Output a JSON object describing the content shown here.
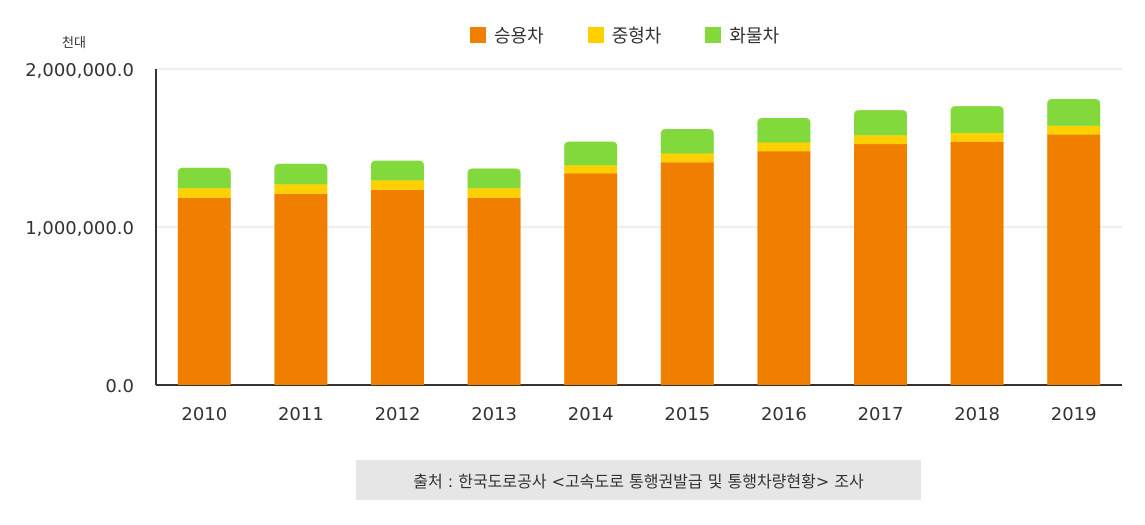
{
  "chart_data": {
    "type": "bar",
    "stacked": true,
    "unit_label": "천대",
    "categories": [
      "2010",
      "2011",
      "2012",
      "2013",
      "2014",
      "2015",
      "2016",
      "2017",
      "2018",
      "2019"
    ],
    "series": [
      {
        "name": "승용차",
        "color": "#f07f00",
        "values": [
          1185000,
          1210000,
          1235000,
          1185000,
          1340000,
          1410000,
          1480000,
          1525000,
          1540000,
          1585000
        ]
      },
      {
        "name": "중형차",
        "color": "#ffd000",
        "values": [
          60000,
          60000,
          60000,
          60000,
          50000,
          55000,
          55000,
          55000,
          55000,
          55000
        ]
      },
      {
        "name": "화물차",
        "color": "#82d93c",
        "values": [
          130000,
          130000,
          125000,
          125000,
          150000,
          155000,
          155000,
          160000,
          170000,
          170000
        ]
      }
    ],
    "ylim": [
      0,
      2000000
    ],
    "yticks": [
      "0.0",
      "1,000,000.0",
      "2,000,000.0"
    ],
    "ytick_values": [
      0,
      1000000,
      2000000
    ],
    "grid": true,
    "legend_position": "top"
  },
  "source_text": "출처 : 한국도로공사 <고속도로 통행권발급 및 통행차량현황> 조사"
}
